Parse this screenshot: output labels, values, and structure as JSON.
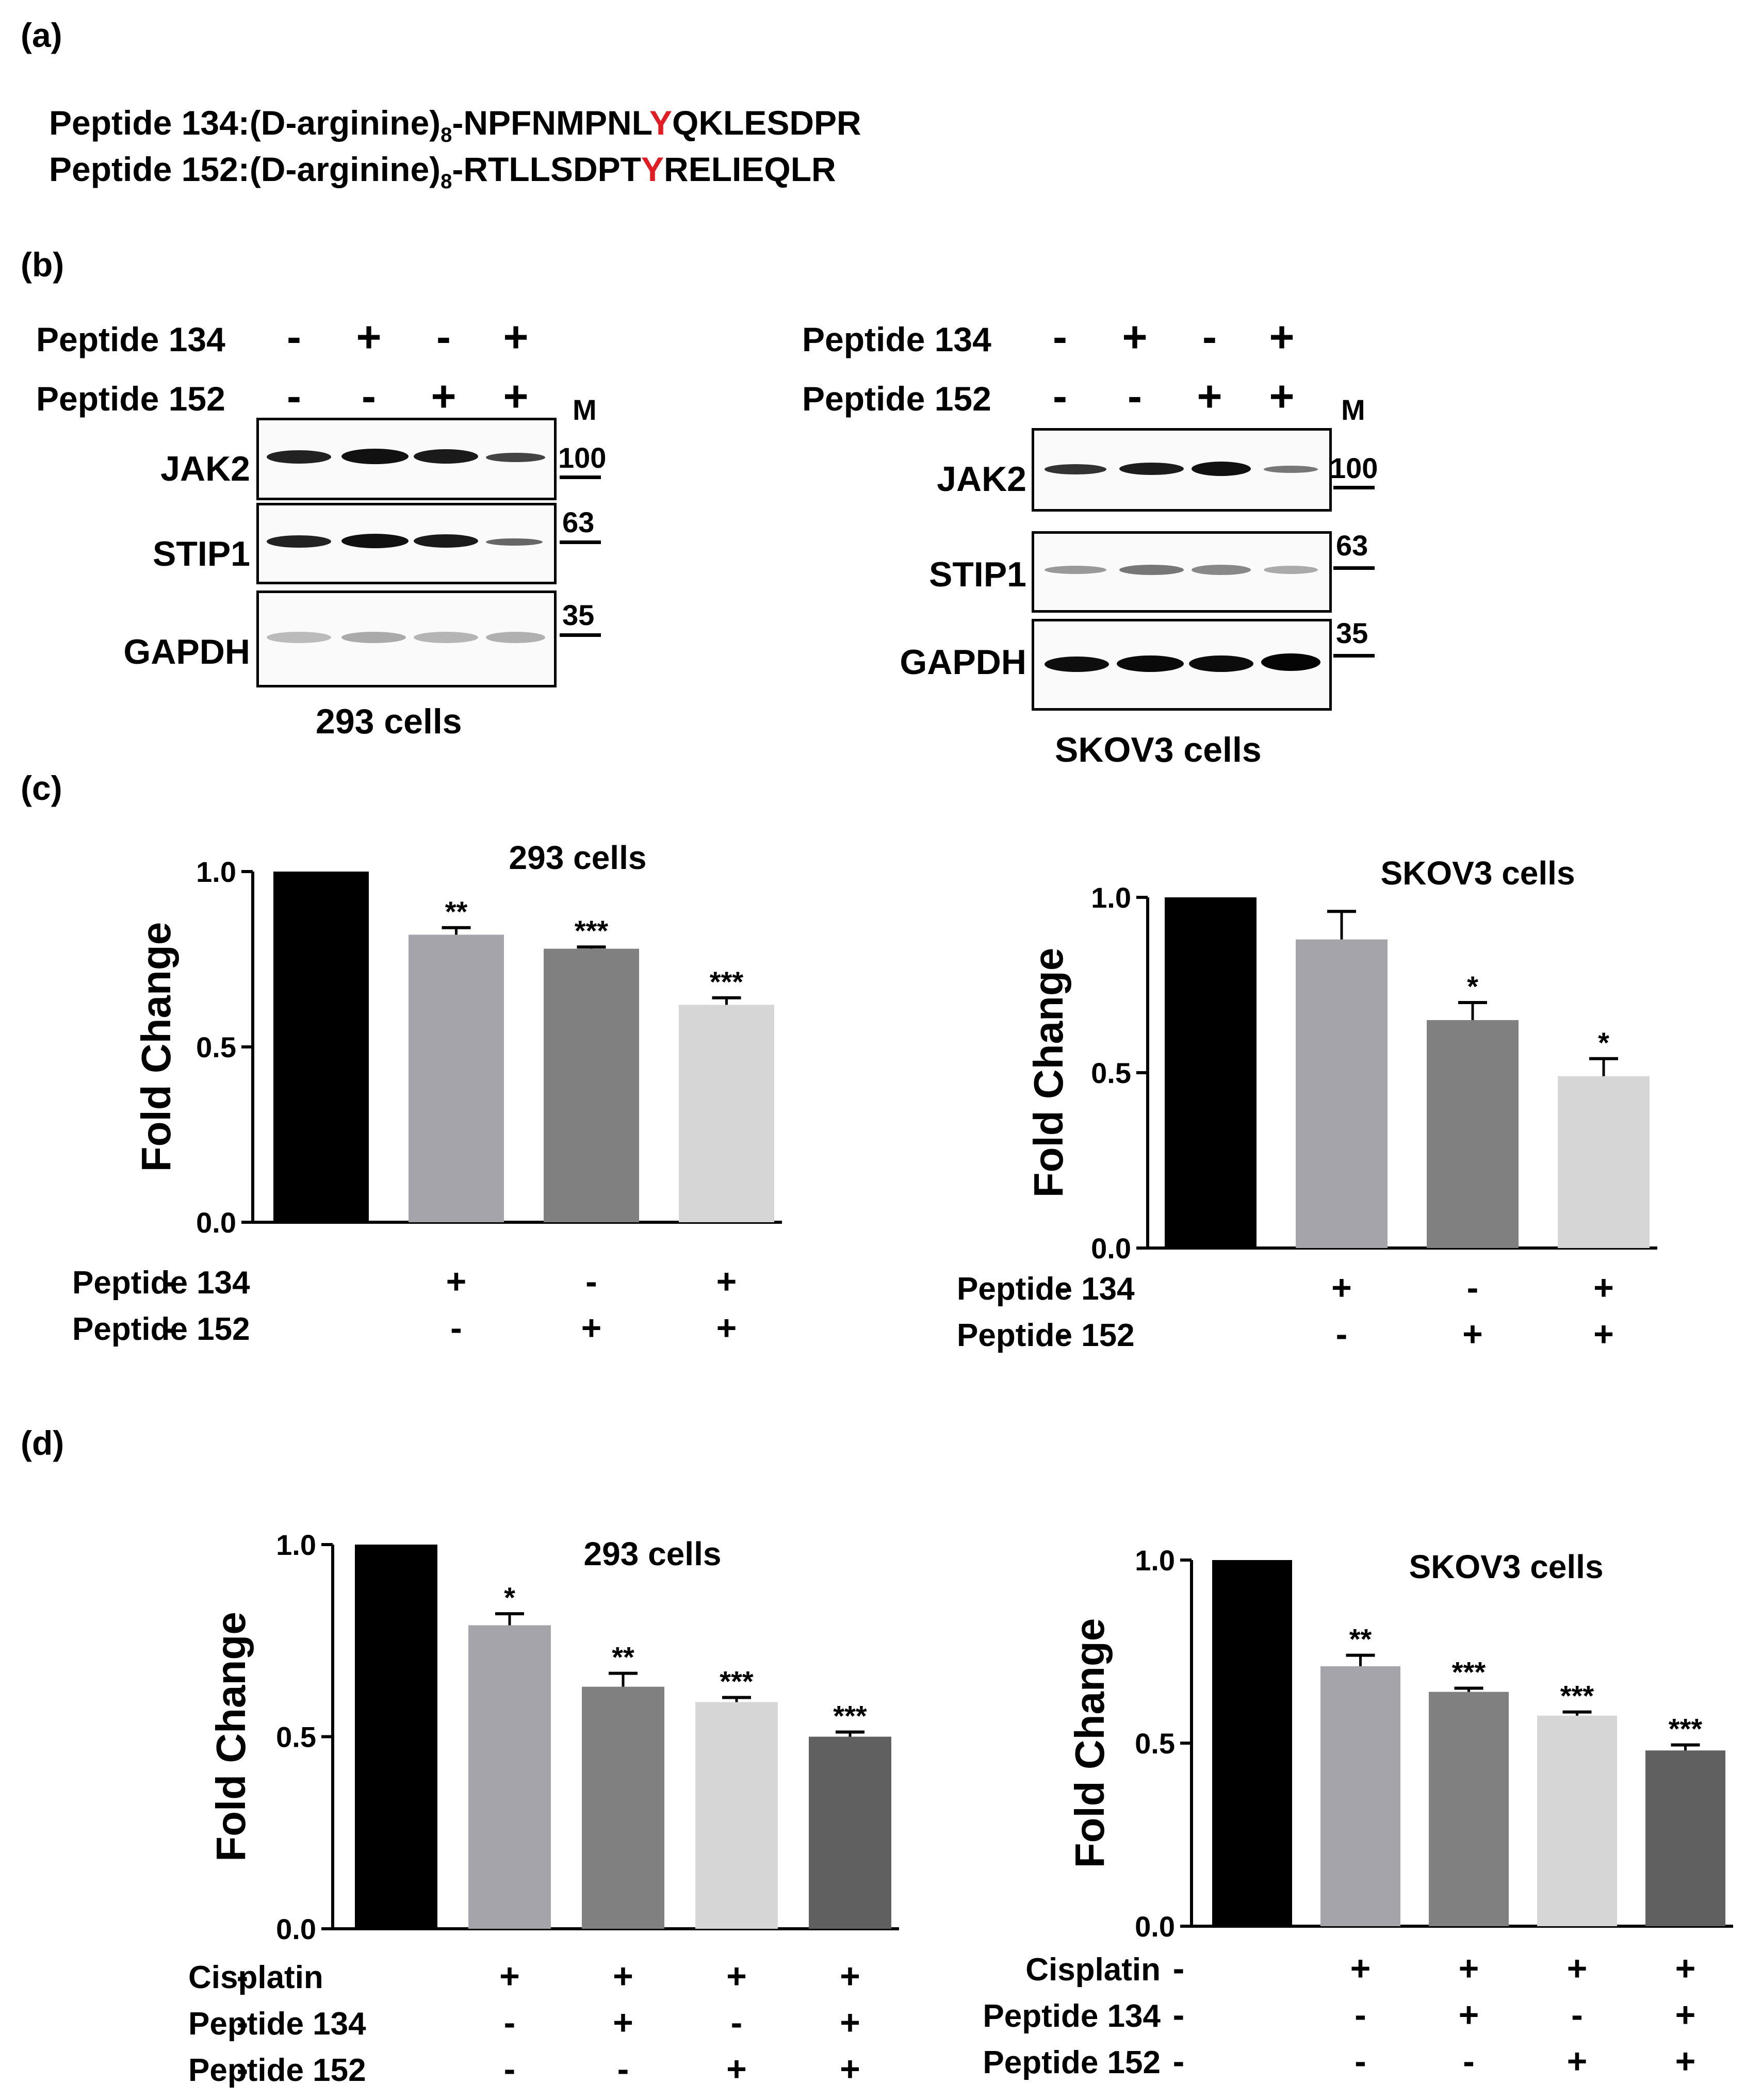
{
  "panel_a": {
    "label": "(a)",
    "seq1": {
      "prefix": "Peptide 134:(D-arginine)",
      "sub": "8",
      "pre": "-NPFNMPNL",
      "y": "Y",
      "post": "QKLESDPR"
    },
    "seq2": {
      "prefix": "Peptide 152:(D-arginine)",
      "sub": "8",
      "pre": "-RTLLSDPT",
      "y": "Y",
      "post": "RELIEQLR"
    }
  },
  "panel_b": {
    "label": "(b)",
    "marker_label": "M",
    "left": {
      "cond_rows": [
        {
          "name": "Peptide 134",
          "signs": [
            "-",
            "+",
            "-",
            "+"
          ]
        },
        {
          "name": "Peptide 152",
          "signs": [
            "-",
            "-",
            "+",
            "+"
          ]
        }
      ],
      "blots": [
        "JAK2",
        "STIP1",
        "GAPDH"
      ],
      "markers": [
        "100",
        "63",
        "35"
      ],
      "caption": "293 cells"
    },
    "right": {
      "cond_rows": [
        {
          "name": "Peptide 134",
          "signs": [
            "-",
            "+",
            "-",
            "+"
          ]
        },
        {
          "name": "Peptide 152",
          "signs": [
            "-",
            "-",
            "+",
            "+"
          ]
        }
      ],
      "blots": [
        "JAK2",
        "STIP1",
        "GAPDH"
      ],
      "markers": [
        "100",
        "63",
        "35"
      ],
      "caption": "SKOV3 cells"
    }
  },
  "panel_c": {
    "label": "(c)"
  },
  "panel_d": {
    "label": "(d)"
  },
  "chart_data": [
    {
      "type": "bar",
      "title": "293 cells",
      "ylabel": "Fold Change",
      "ylim": [
        0,
        1.0
      ],
      "yticks": [
        "0.0",
        "0.5",
        "1.0"
      ],
      "values": [
        1.0,
        0.82,
        0.78,
        0.62
      ],
      "errors": [
        0,
        0.02,
        0.005,
        0.02
      ],
      "significance": [
        "",
        "**",
        "***",
        "***"
      ],
      "colors": [
        "#000000",
        "#a5a4aa",
        "#808080",
        "#d6d6d6"
      ],
      "conditions": [
        {
          "name": "Peptide 134",
          "signs": [
            "-",
            "+",
            "-",
            "+"
          ]
        },
        {
          "name": "Peptide 152",
          "signs": [
            "-",
            "-",
            "+",
            "+"
          ]
        }
      ]
    },
    {
      "type": "bar",
      "title": "SKOV3 cells",
      "ylabel": "Fold Change",
      "ylim": [
        0,
        1.0
      ],
      "yticks": [
        "0.0",
        "0.5",
        "1.0"
      ],
      "values": [
        1.0,
        0.88,
        0.65,
        0.49
      ],
      "errors": [
        0,
        0.08,
        0.05,
        0.05
      ],
      "significance": [
        "",
        "",
        "*",
        "*"
      ],
      "colors": [
        "#000000",
        "#a5a4aa",
        "#808080",
        "#d6d6d6"
      ],
      "conditions": [
        {
          "name": "Peptide 134",
          "signs": [
            "-",
            "+",
            "-",
            "+"
          ]
        },
        {
          "name": "Peptide 152",
          "signs": [
            "-",
            "-",
            "+",
            "+"
          ]
        }
      ]
    },
    {
      "type": "bar",
      "title": "293 cells",
      "ylabel": "Fold Change",
      "ylim": [
        0,
        1.0
      ],
      "yticks": [
        "0.0",
        "0.5",
        "1.0"
      ],
      "values": [
        1.0,
        0.79,
        0.63,
        0.59,
        0.5
      ],
      "errors": [
        0,
        0.03,
        0.035,
        0.012,
        0.012
      ],
      "significance": [
        "",
        "*",
        "**",
        "***",
        "***"
      ],
      "colors": [
        "#000000",
        "#a5a4aa",
        "#808080",
        "#d6d6d6",
        "#606060"
      ],
      "conditions": [
        {
          "name": "Cisplatin",
          "signs": [
            "-",
            "+",
            "+",
            "+",
            "+"
          ]
        },
        {
          "name": "Peptide 134",
          "signs": [
            "-",
            "-",
            "+",
            "-",
            "+"
          ]
        },
        {
          "name": "Peptide 152",
          "signs": [
            "-",
            "-",
            "-",
            "+",
            "+"
          ]
        }
      ]
    },
    {
      "type": "bar",
      "title": "SKOV3 cells",
      "ylabel": "Fold Change",
      "ylim": [
        0,
        1.0
      ],
      "yticks": [
        "0.0",
        "0.5",
        "1.0"
      ],
      "values": [
        1.0,
        0.71,
        0.64,
        0.575,
        0.48
      ],
      "errors": [
        0,
        0.03,
        0.01,
        0.01,
        0.015
      ],
      "significance": [
        "",
        "**",
        "***",
        "***",
        "***"
      ],
      "colors": [
        "#000000",
        "#a5a4aa",
        "#808080",
        "#d6d6d6",
        "#606060"
      ],
      "conditions": [
        {
          "name": "Cisplatin",
          "signs": [
            "-",
            "+",
            "+",
            "+",
            "+"
          ]
        },
        {
          "name": "Peptide 134",
          "signs": [
            "-",
            "-",
            "+",
            "-",
            "+"
          ]
        },
        {
          "name": "Peptide 152",
          "signs": [
            "-",
            "-",
            "-",
            "+",
            "+"
          ]
        }
      ]
    }
  ]
}
